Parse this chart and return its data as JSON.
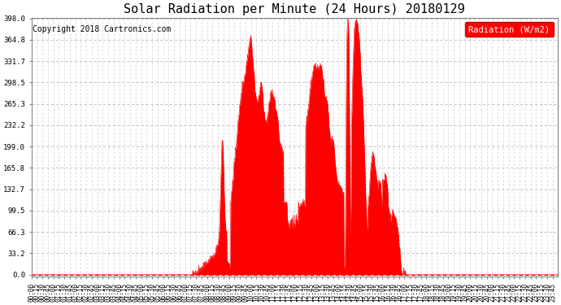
{
  "title": "Solar Radiation per Minute (24 Hours) 20180129",
  "copyright": "Copyright 2018 Cartronics.com",
  "legend_label": "Radiation (W/m2)",
  "ylabel_values": [
    0.0,
    33.2,
    66.3,
    99.5,
    132.7,
    165.8,
    199.0,
    232.2,
    265.3,
    298.5,
    331.7,
    364.8,
    398.0
  ],
  "ymax": 398.0,
  "fill_color": "#FF0000",
  "line_color": "#FF0000",
  "background_color": "#FFFFFF",
  "dashed_line_color": "#FF0000",
  "legend_bg": "#FF0000",
  "legend_text_color": "#FFFFFF",
  "title_fontsize": 11,
  "copyright_fontsize": 7,
  "tick_fontsize": 6.5
}
